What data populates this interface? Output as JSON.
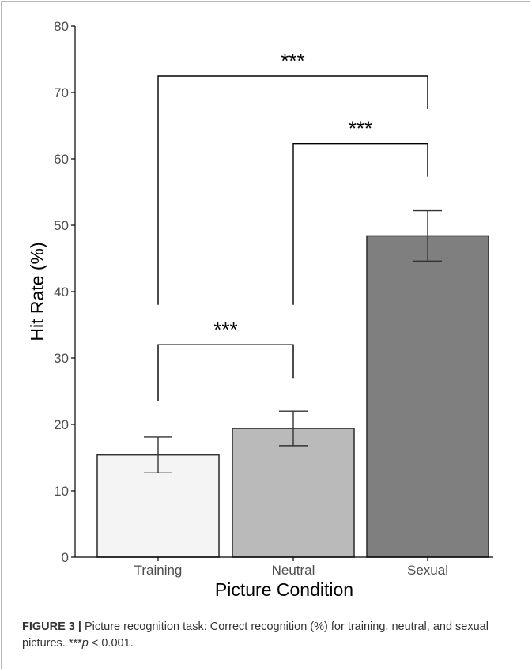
{
  "chart_data": {
    "type": "bar",
    "categories": [
      "Training",
      "Neutral",
      "Sexual"
    ],
    "values": [
      15.4,
      19.4,
      48.4
    ],
    "error_low": [
      12.7,
      16.8,
      44.6
    ],
    "error_high": [
      18.1,
      22.0,
      52.2
    ],
    "bar_colors": [
      "#f4f4f4",
      "#bababa",
      "#7f7f7f"
    ],
    "xlabel": "Picture Condition",
    "ylabel": "Hit Rate (%)",
    "ylim": [
      0,
      80
    ],
    "yticks": [
      "0",
      "10",
      "20",
      "30",
      "40",
      "50",
      "60",
      "70",
      "80"
    ],
    "grid": false,
    "significance": [
      {
        "from": 0,
        "to": 1,
        "label": "***",
        "y": 32,
        "left_drop": 23.5,
        "right_drop": 27
      },
      {
        "from": 1,
        "to": 2,
        "label": "***",
        "y": 62.3,
        "left_drop": 38,
        "right_drop": 57.3
      },
      {
        "from": 0,
        "to": 2,
        "label": "***",
        "y": 72.5,
        "left_drop": 38,
        "right_drop": 67.5
      }
    ]
  },
  "caption": {
    "label": "FIGURE 3 |",
    "text_before": " Picture recognition task: Correct recognition (%) for training, neutral, and sexual pictures. ***",
    "p_symbol": "p",
    "text_after": " < 0.001."
  }
}
